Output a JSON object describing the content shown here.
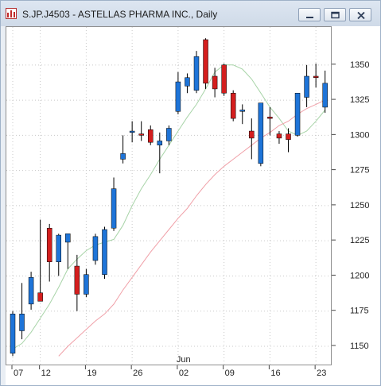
{
  "window": {
    "title": "S.JP.J4503 - ASTELLAS PHARMA INC., Daily",
    "app_icon": "chart-app-icon",
    "buttons": [
      {
        "name": "minimize-button",
        "icon": "minimize-icon"
      },
      {
        "name": "restore-button",
        "icon": "restore-icon"
      },
      {
        "name": "close-button",
        "icon": "close-icon"
      }
    ]
  },
  "colors": {
    "up": "#1e74d8",
    "down": "#d41e1e",
    "ma_fast": "#a8d4a8",
    "ma_slow": "#f0a0a8",
    "grid": "#c8c8c8"
  },
  "chart_data": {
    "type": "candlestick",
    "title": "S.JP.J4503 - ASTELLAS PHARMA INC., Daily",
    "month_label": "Jun",
    "ylim": [
      1137,
      1377
    ],
    "y_ticks": [
      1150,
      1175,
      1200,
      1225,
      1250,
      1275,
      1300,
      1325,
      1350
    ],
    "x_ticks": [
      {
        "label": "07",
        "index": 0
      },
      {
        "label": "12",
        "index": 3
      },
      {
        "label": "19",
        "index": 8
      },
      {
        "label": "26",
        "index": 13
      },
      {
        "label": "02",
        "index": 18
      },
      {
        "label": "09",
        "index": 23
      },
      {
        "label": "16",
        "index": 28
      },
      {
        "label": "23",
        "index": 33
      }
    ],
    "candles": [
      {
        "o": 1145,
        "h": 1175,
        "l": 1143,
        "c": 1173
      },
      {
        "o": 1161,
        "h": 1195,
        "l": 1155,
        "c": 1173
      },
      {
        "o": 1180,
        "h": 1203,
        "l": 1176,
        "c": 1199
      },
      {
        "o": 1188,
        "h": 1240,
        "l": 1182,
        "c": 1182
      },
      {
        "o": 1234,
        "h": 1237,
        "l": 1196,
        "c": 1210
      },
      {
        "o": 1210,
        "h": 1230,
        "l": 1200,
        "c": 1229
      },
      {
        "o": 1224,
        "h": 1228,
        "l": 1205,
        "c": 1230
      },
      {
        "o": 1207,
        "h": 1215,
        "l": 1175,
        "c": 1187
      },
      {
        "o": 1187,
        "h": 1205,
        "l": 1185,
        "c": 1201
      },
      {
        "o": 1211,
        "h": 1230,
        "l": 1208,
        "c": 1228
      },
      {
        "o": 1201,
        "h": 1235,
        "l": 1198,
        "c": 1233
      },
      {
        "o": 1234,
        "h": 1270,
        "l": 1232,
        "c": 1262
      },
      {
        "o": 1283,
        "h": 1300,
        "l": 1280,
        "c": 1287
      },
      {
        "o": 1302,
        "h": 1310,
        "l": 1295,
        "c": 1303
      },
      {
        "o": 1301,
        "h": 1310,
        "l": 1296,
        "c": 1300
      },
      {
        "o": 1304,
        "h": 1307,
        "l": 1293,
        "c": 1295
      },
      {
        "o": 1293,
        "h": 1302,
        "l": 1273,
        "c": 1296
      },
      {
        "o": 1296,
        "h": 1307,
        "l": 1293,
        "c": 1305
      },
      {
        "o": 1317,
        "h": 1345,
        "l": 1315,
        "c": 1338
      },
      {
        "o": 1335,
        "h": 1344,
        "l": 1330,
        "c": 1341
      },
      {
        "o": 1332,
        "h": 1360,
        "l": 1330,
        "c": 1356
      },
      {
        "o": 1368,
        "h": 1369,
        "l": 1333,
        "c": 1337
      },
      {
        "o": 1342,
        "h": 1348,
        "l": 1327,
        "c": 1333
      },
      {
        "o": 1350,
        "h": 1351,
        "l": 1328,
        "c": 1330
      },
      {
        "o": 1330,
        "h": 1332,
        "l": 1310,
        "c": 1312
      },
      {
        "o": 1317,
        "h": 1322,
        "l": 1308,
        "c": 1318
      },
      {
        "o": 1303,
        "h": 1312,
        "l": 1283,
        "c": 1298
      },
      {
        "o": 1280,
        "h": 1322,
        "l": 1278,
        "c": 1323
      },
      {
        "o": 1313,
        "h": 1320,
        "l": 1300,
        "c": 1312
      },
      {
        "o": 1301,
        "h": 1303,
        "l": 1294,
        "c": 1298
      },
      {
        "o": 1301,
        "h": 1305,
        "l": 1288,
        "c": 1297
      },
      {
        "o": 1300,
        "h": 1330,
        "l": 1299,
        "c": 1330
      },
      {
        "o": 1327,
        "h": 1350,
        "l": 1320,
        "c": 1342
      },
      {
        "o": 1342,
        "h": 1351,
        "l": 1334,
        "c": 1341
      },
      {
        "o": 1320,
        "h": 1346,
        "l": 1316,
        "c": 1337
      }
    ],
    "moving_averages": [
      {
        "name": "fast",
        "color": "#a8d4a8",
        "values": [
          1148,
          1152,
          1160,
          1170,
          1180,
          1192,
          1205,
          1212,
          1218,
          1222,
          1224,
          1226,
          1236,
          1250,
          1262,
          1272,
          1283,
          1293,
          1303,
          1313,
          1322,
          1333,
          1345,
          1350,
          1350,
          1347,
          1340,
          1330,
          1320,
          1312,
          1303,
          1300,
          1303,
          1310,
          1318
        ]
      },
      {
        "name": "slow",
        "color": "#f0a0a8",
        "values": [
          null,
          null,
          null,
          null,
          null,
          1143,
          1150,
          1156,
          1162,
          1168,
          1173,
          1180,
          1190,
          1199,
          1208,
          1217,
          1225,
          1233,
          1241,
          1248,
          1257,
          1265,
          1272,
          1278,
          1283,
          1288,
          1293,
          1298,
          1302,
          1307,
          1310,
          1315,
          1319,
          1322,
          1325
        ]
      }
    ]
  }
}
